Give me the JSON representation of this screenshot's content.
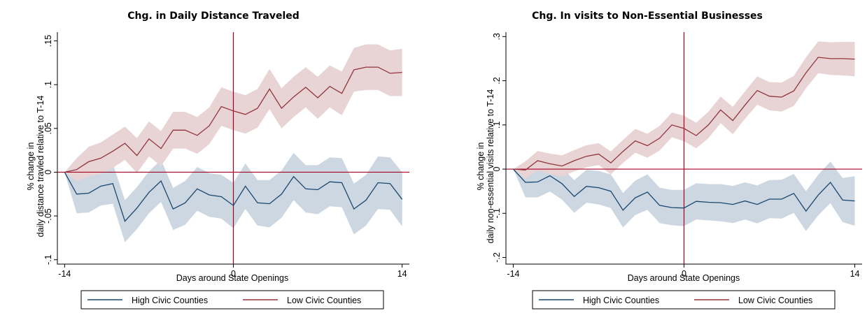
{
  "colors": {
    "high": "#1a476f",
    "low": "#90353b",
    "high_band": "#ccd7e2",
    "low_band": "#e9d4d5",
    "refline": "#a50021",
    "axis": "#000000"
  },
  "chart_data": [
    {
      "type": "line",
      "title": "Chg. in Daily Distance Traveled",
      "xlabel": "Days around State Openings",
      "ylabel": [
        "% change in",
        "daily distance travled relative to T-14"
      ],
      "xlim": [
        -14.6,
        14.6
      ],
      "ylim": [
        -0.105,
        0.16
      ],
      "xticks": [
        -14,
        0,
        14
      ],
      "xtick_labels": [
        "-14",
        "0",
        "14"
      ],
      "yticks": [
        -0.1,
        -0.05,
        0,
        0.05,
        0.1,
        0.15
      ],
      "ytick_labels": [
        "-.1",
        "-.05",
        "0",
        ".05",
        ".1",
        ".15"
      ],
      "hline": 0,
      "vline": 0,
      "legend": [
        "High Civic Counties",
        "Low Civic Counties"
      ],
      "x": [
        -14,
        -13,
        -12,
        -11,
        -10,
        -9,
        -8,
        -7,
        -6,
        -5,
        -4,
        -3,
        -2,
        -1,
        0,
        1,
        2,
        3,
        4,
        5,
        6,
        7,
        8,
        9,
        10,
        11,
        12,
        13,
        14
      ],
      "series": [
        {
          "name": "High Civic Counties",
          "values": [
            0,
            -0.025,
            -0.024,
            -0.016,
            -0.013,
            -0.056,
            -0.041,
            -0.023,
            -0.01,
            -0.042,
            -0.035,
            -0.019,
            -0.026,
            -0.028,
            -0.038,
            -0.016,
            -0.035,
            -0.036,
            -0.025,
            -0.005,
            -0.019,
            -0.02,
            -0.011,
            -0.012,
            -0.042,
            -0.032,
            -0.012,
            -0.013,
            -0.031
          ],
          "ci": [
            0,
            0.022,
            0.022,
            0.022,
            0.023,
            0.024,
            0.024,
            0.024,
            0.024,
            0.024,
            0.025,
            0.025,
            0.025,
            0.025,
            0.026,
            0.026,
            0.026,
            0.027,
            0.027,
            0.027,
            0.027,
            0.028,
            0.028,
            0.028,
            0.029,
            0.029,
            0.03,
            0.03,
            0.031
          ]
        },
        {
          "name": "Low Civic Counties",
          "values": [
            0,
            0.003,
            0.012,
            0.016,
            0.024,
            0.033,
            0.019,
            0.038,
            0.027,
            0.048,
            0.048,
            0.042,
            0.053,
            0.075,
            0.07,
            0.066,
            0.073,
            0.095,
            0.073,
            0.086,
            0.097,
            0.085,
            0.098,
            0.09,
            0.117,
            0.12,
            0.12,
            0.113,
            0.114
          ],
          "ci": [
            0,
            0.013,
            0.017,
            0.018,
            0.019,
            0.019,
            0.02,
            0.02,
            0.02,
            0.021,
            0.021,
            0.021,
            0.021,
            0.022,
            0.022,
            0.022,
            0.022,
            0.023,
            0.023,
            0.023,
            0.023,
            0.024,
            0.024,
            0.025,
            0.025,
            0.026,
            0.026,
            0.026,
            0.027
          ]
        }
      ]
    },
    {
      "type": "line",
      "title": "Chg. In visits to Non-Essential Businesses",
      "xlabel": "Days around State Openings",
      "ylabel": [
        "% change in",
        "daily non-essential visits relative to T-14"
      ],
      "xlim": [
        -14.6,
        14.6
      ],
      "ylim": [
        -0.215,
        0.31
      ],
      "xticks": [
        -14,
        0,
        14
      ],
      "xtick_labels": [
        "-14",
        "0",
        "14"
      ],
      "yticks": [
        -0.2,
        -0.1,
        0,
        0.1,
        0.2,
        0.3
      ],
      "ytick_labels": [
        "-.2",
        "-.1",
        "0",
        ".1",
        ".2",
        ".3"
      ],
      "hline": 0,
      "vline": 0,
      "legend": [
        "High Civic Counties",
        "Low Civic Counties"
      ],
      "x": [
        -14,
        -13,
        -12,
        -11,
        -10,
        -9,
        -8,
        -7,
        -6,
        -5,
        -4,
        -3,
        -2,
        -1,
        0,
        1,
        2,
        3,
        4,
        5,
        6,
        7,
        8,
        9,
        10,
        11,
        12,
        13,
        14
      ],
      "series": [
        {
          "name": "High Civic Counties",
          "values": [
            0,
            -0.03,
            -0.029,
            -0.015,
            -0.033,
            -0.062,
            -0.039,
            -0.042,
            -0.05,
            -0.093,
            -0.065,
            -0.052,
            -0.082,
            -0.087,
            -0.088,
            -0.073,
            -0.075,
            -0.076,
            -0.08,
            -0.072,
            -0.08,
            -0.068,
            -0.068,
            -0.055,
            -0.095,
            -0.059,
            -0.03,
            -0.07,
            -0.072
          ],
          "ci": [
            0,
            0.034,
            0.035,
            0.036,
            0.036,
            0.037,
            0.037,
            0.038,
            0.038,
            0.039,
            0.039,
            0.04,
            0.04,
            0.04,
            0.041,
            0.041,
            0.041,
            0.042,
            0.042,
            0.042,
            0.043,
            0.043,
            0.044,
            0.044,
            0.045,
            0.046,
            0.047,
            0.05,
            0.056
          ]
        },
        {
          "name": "Low Civic Counties",
          "values": [
            0,
            -0.002,
            0.019,
            0.012,
            0.007,
            0.019,
            0.029,
            0.034,
            0.014,
            0.04,
            0.064,
            0.053,
            0.07,
            0.1,
            0.092,
            0.076,
            0.1,
            0.134,
            0.11,
            0.145,
            0.178,
            0.165,
            0.163,
            0.177,
            0.218,
            0.253,
            0.25,
            0.25,
            0.249
          ],
          "ci": [
            0,
            0.02,
            0.022,
            0.023,
            0.024,
            0.024,
            0.025,
            0.025,
            0.026,
            0.026,
            0.027,
            0.027,
            0.028,
            0.028,
            0.029,
            0.029,
            0.03,
            0.03,
            0.031,
            0.031,
            0.032,
            0.032,
            0.033,
            0.034,
            0.035,
            0.036,
            0.037,
            0.038,
            0.039
          ]
        }
      ]
    }
  ]
}
